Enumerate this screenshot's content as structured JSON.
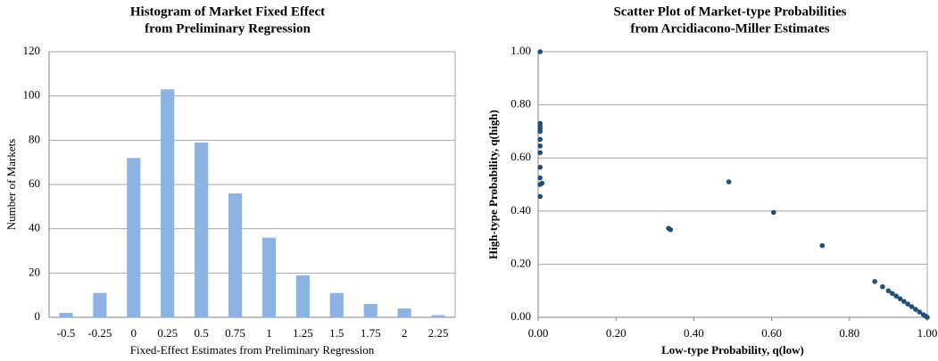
{
  "chart_data": [
    {
      "type": "bar",
      "title": [
        "Histogram of Market Fixed Effect",
        "from Preliminary Regression"
      ],
      "x_label": "Fixed-Effect Estimates from Preliminary Regression",
      "y_label": "Number of Markets",
      "categories": [
        "-0.5",
        "-0.25",
        "0",
        "0.25",
        "0.5",
        "0.75",
        "1",
        "1.25",
        "1.5",
        "1.75",
        "2",
        "2.25"
      ],
      "values": [
        2,
        11,
        72,
        103,
        79,
        56,
        36,
        19,
        11,
        6,
        4,
        1
      ],
      "color": "#8db3e2",
      "ylim": [
        0,
        120
      ],
      "yticks": [
        0,
        20,
        40,
        60,
        80,
        100,
        120
      ],
      "grid": true
    },
    {
      "type": "scatter",
      "title": [
        "Scatter Plot of Market-type Probabilities",
        "from Arcidiacono-Miller Estimates"
      ],
      "x_label": "Low-type Probability, q(low)",
      "y_label": "High-type Probability, q(high)",
      "color": "#1f4e79",
      "x": [
        0.005,
        0.005,
        0.005,
        0.005,
        0.005,
        0.005,
        0.005,
        0.005,
        0.005,
        0.005,
        0.01,
        0.005,
        0.005,
        0.335,
        0.34,
        0.49,
        0.605,
        0.73,
        0.865,
        0.885,
        0.9,
        0.91,
        0.92,
        0.93,
        0.94,
        0.95,
        0.96,
        0.97,
        0.98,
        0.99,
        0.995,
        1.0
      ],
      "y": [
        1.0,
        0.73,
        0.72,
        0.71,
        0.7,
        0.67,
        0.645,
        0.62,
        0.565,
        0.525,
        0.505,
        0.5,
        0.455,
        0.335,
        0.33,
        0.51,
        0.395,
        0.27,
        0.135,
        0.115,
        0.1,
        0.09,
        0.08,
        0.07,
        0.06,
        0.05,
        0.04,
        0.03,
        0.02,
        0.01,
        0.005,
        0.0
      ],
      "xlim": [
        0,
        1
      ],
      "xticks": [
        {
          "value": 0,
          "label": "0.00"
        },
        {
          "value": 0.2,
          "label": "0.20"
        },
        {
          "value": 0.4,
          "label": "0.40"
        },
        {
          "value": 0.6,
          "label": "0.60"
        },
        {
          "value": 0.8,
          "label": "0.80"
        },
        {
          "value": 1,
          "label": "1.00"
        }
      ],
      "ylim": [
        0,
        1
      ],
      "yticks": [
        {
          "value": 0,
          "label": "0.00"
        },
        {
          "value": 0.2,
          "label": "0.20"
        },
        {
          "value": 0.4,
          "label": "0.40"
        },
        {
          "value": 0.6,
          "label": "0.60"
        },
        {
          "value": 0.8,
          "label": "0.80"
        },
        {
          "value": 1,
          "label": "1.00"
        }
      ],
      "grid": true
    }
  ]
}
